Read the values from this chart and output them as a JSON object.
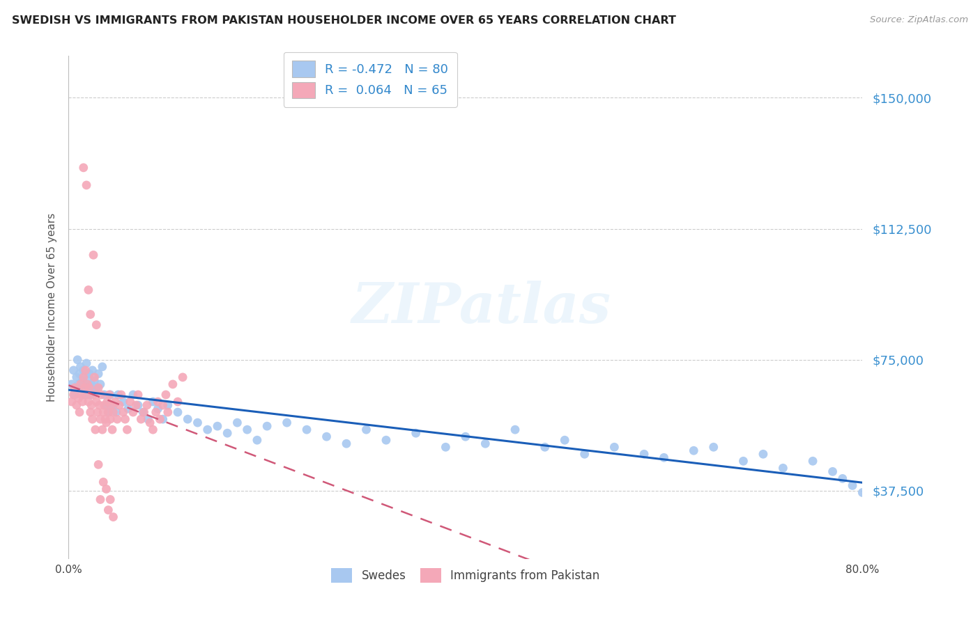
{
  "title": "SWEDISH VS IMMIGRANTS FROM PAKISTAN HOUSEHOLDER INCOME OVER 65 YEARS CORRELATION CHART",
  "source": "Source: ZipAtlas.com",
  "ylabel": "Householder Income Over 65 years",
  "xlim": [
    0.0,
    0.8
  ],
  "ylim": [
    18000,
    162000
  ],
  "yticks": [
    37500,
    75000,
    112500,
    150000
  ],
  "ytick_labels": [
    "$37,500",
    "$75,000",
    "$112,500",
    "$150,000"
  ],
  "xticks": [
    0.0,
    0.1,
    0.2,
    0.3,
    0.4,
    0.5,
    0.6,
    0.7,
    0.8
  ],
  "xtick_labels": [
    "0.0%",
    "",
    "",
    "",
    "",
    "",
    "",
    "",
    "80.0%"
  ],
  "swedes_color": "#a8c8f0",
  "pakistan_color": "#f4a8b8",
  "line_swedes_color": "#1a5eb8",
  "line_pakistan_color": "#d05878",
  "R_swedes": -0.472,
  "N_swedes": 80,
  "R_pakistan": 0.064,
  "N_pakistan": 65,
  "watermark": "ZIPatlas",
  "legend_labels_bottom": [
    "Swedes",
    "Immigrants from Pakistan"
  ],
  "legend_label_blue": "R = -0.472   N = 80",
  "legend_label_pink": "R =  0.064   N = 65",
  "swedes_x": [
    0.003,
    0.005,
    0.006,
    0.008,
    0.009,
    0.01,
    0.011,
    0.012,
    0.013,
    0.014,
    0.015,
    0.016,
    0.017,
    0.018,
    0.019,
    0.02,
    0.021,
    0.022,
    0.023,
    0.024,
    0.025,
    0.026,
    0.028,
    0.03,
    0.032,
    0.034,
    0.036,
    0.038,
    0.04,
    0.042,
    0.045,
    0.048,
    0.05,
    0.055,
    0.06,
    0.065,
    0.07,
    0.075,
    0.08,
    0.085,
    0.09,
    0.095,
    0.1,
    0.11,
    0.12,
    0.13,
    0.14,
    0.15,
    0.16,
    0.17,
    0.18,
    0.19,
    0.2,
    0.22,
    0.24,
    0.26,
    0.28,
    0.3,
    0.32,
    0.35,
    0.38,
    0.4,
    0.42,
    0.45,
    0.48,
    0.5,
    0.52,
    0.55,
    0.58,
    0.6,
    0.63,
    0.65,
    0.68,
    0.7,
    0.72,
    0.75,
    0.77,
    0.78,
    0.79,
    0.8
  ],
  "swedes_y": [
    68000,
    72000,
    65000,
    70000,
    75000,
    68000,
    71000,
    73000,
    67000,
    69000,
    72000,
    65000,
    68000,
    74000,
    70000,
    67000,
    71000,
    65000,
    68000,
    72000,
    66000,
    69000,
    67000,
    71000,
    68000,
    73000,
    65000,
    62000,
    60000,
    65000,
    62000,
    60000,
    65000,
    63000,
    61000,
    65000,
    62000,
    60000,
    58000,
    63000,
    61000,
    58000,
    62000,
    60000,
    58000,
    57000,
    55000,
    56000,
    54000,
    57000,
    55000,
    52000,
    56000,
    57000,
    55000,
    53000,
    51000,
    55000,
    52000,
    54000,
    50000,
    53000,
    51000,
    55000,
    50000,
    52000,
    48000,
    50000,
    48000,
    47000,
    49000,
    50000,
    46000,
    48000,
    44000,
    46000,
    43000,
    41000,
    39000,
    37000
  ],
  "pakistan_x": [
    0.003,
    0.005,
    0.006,
    0.008,
    0.01,
    0.011,
    0.012,
    0.013,
    0.014,
    0.015,
    0.016,
    0.017,
    0.018,
    0.019,
    0.02,
    0.021,
    0.022,
    0.023,
    0.024,
    0.025,
    0.026,
    0.027,
    0.028,
    0.029,
    0.03,
    0.031,
    0.032,
    0.033,
    0.034,
    0.035,
    0.036,
    0.037,
    0.038,
    0.039,
    0.04,
    0.041,
    0.042,
    0.043,
    0.044,
    0.045,
    0.047,
    0.049,
    0.051,
    0.053,
    0.055,
    0.057,
    0.059,
    0.062,
    0.065,
    0.068,
    0.07,
    0.073,
    0.076,
    0.079,
    0.082,
    0.085,
    0.088,
    0.09,
    0.092,
    0.095,
    0.098,
    0.1,
    0.105,
    0.11,
    0.115
  ],
  "pakistan_y": [
    63000,
    65000,
    67000,
    62000,
    64000,
    60000,
    68000,
    65000,
    63000,
    70000,
    67000,
    72000,
    65000,
    68000,
    63000,
    67000,
    60000,
    62000,
    58000,
    65000,
    70000,
    55000,
    63000,
    60000,
    67000,
    62000,
    58000,
    65000,
    55000,
    60000,
    62000,
    58000,
    57000,
    63000,
    60000,
    65000,
    58000,
    62000,
    55000,
    60000,
    63000,
    58000,
    62000,
    65000,
    60000,
    58000,
    55000,
    63000,
    60000,
    62000,
    65000,
    58000,
    60000,
    62000,
    57000,
    55000,
    60000,
    63000,
    58000,
    62000,
    65000,
    60000,
    68000,
    63000,
    70000
  ],
  "pakistan_outliers_x": [
    0.015,
    0.018,
    0.02,
    0.022,
    0.025,
    0.028,
    0.03,
    0.032,
    0.035,
    0.038,
    0.04,
    0.042,
    0.045
  ],
  "pakistan_outliers_y": [
    130000,
    125000,
    95000,
    88000,
    105000,
    85000,
    45000,
    35000,
    40000,
    38000,
    32000,
    35000,
    30000
  ]
}
